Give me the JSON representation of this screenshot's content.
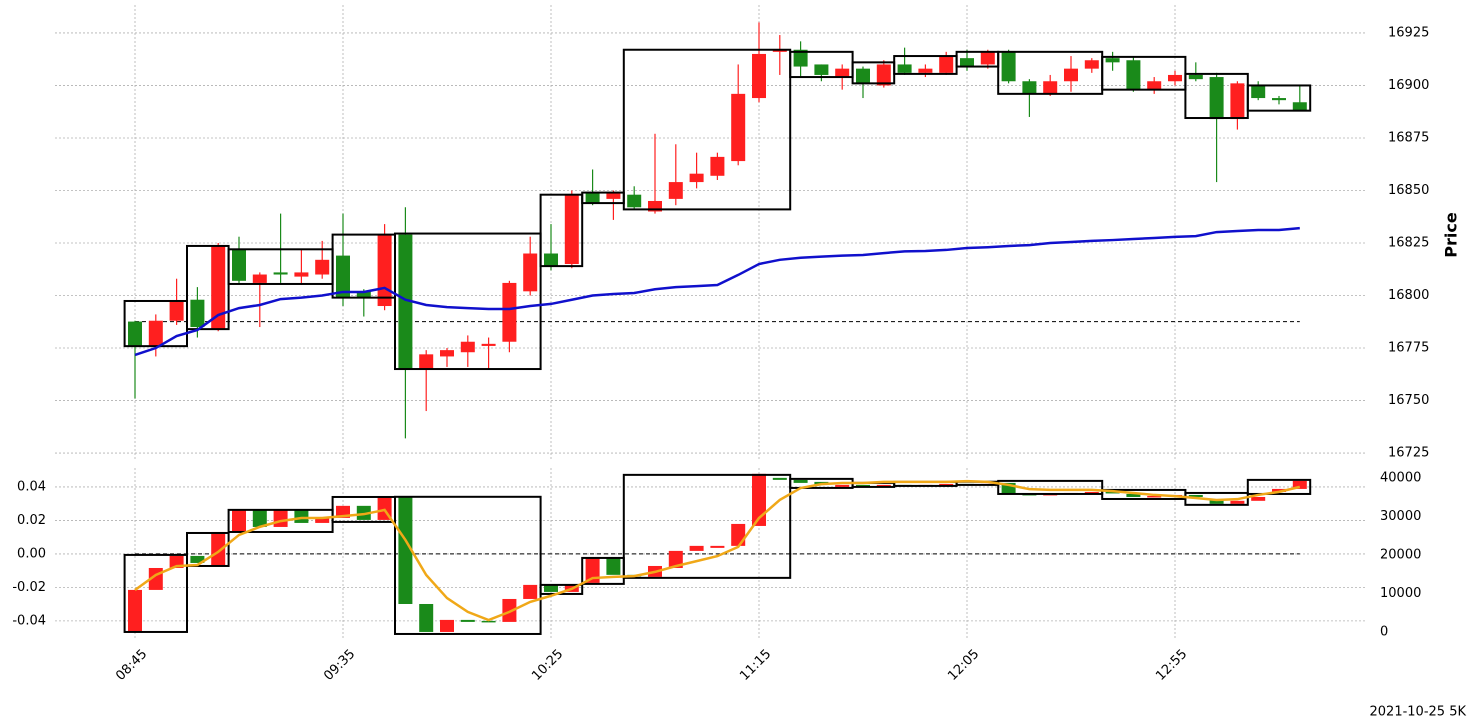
{
  "chart_data": {
    "type": "candlestick",
    "footer": "2021-10-25 5K",
    "categories": [
      "08:45",
      null,
      null,
      null,
      null,
      null,
      null,
      null,
      null,
      null,
      "09:35",
      null,
      null,
      null,
      null,
      null,
      null,
      null,
      null,
      null,
      "10:25",
      null,
      null,
      null,
      null,
      null,
      null,
      null,
      null,
      null,
      "11:15",
      null,
      null,
      null,
      null,
      null,
      null,
      null,
      null,
      null,
      "12:05",
      null,
      null,
      null,
      null,
      null,
      null,
      null,
      null,
      null,
      "12:55",
      null,
      null,
      null,
      null,
      null,
      null
    ],
    "grid": true,
    "up_color": "#ff1f1f",
    "down_color": "#1a8a1a",
    "panels": [
      {
        "ylabel": "Price",
        "ylim": [
          16721.7,
          16938.3
        ],
        "yticks": [
          16725,
          16750,
          16775,
          16800,
          16825,
          16850,
          16875,
          16900,
          16925
        ],
        "open": [
          16787.6,
          16776,
          16788,
          16798,
          16784,
          16822,
          16806,
          16811,
          16809,
          16810,
          16819,
          16802,
          16795,
          16829,
          16765,
          16771,
          16773,
          16776,
          16778,
          16802,
          16820,
          16815,
          16849,
          16846,
          16848,
          16840,
          16846,
          16854,
          16857,
          16864,
          16894,
          16916,
          16917,
          16910,
          16904,
          16908,
          16900,
          16910,
          16906,
          16906,
          16913,
          16910,
          16916,
          16902,
          16896,
          16902,
          16908,
          16913,
          16912,
          16898,
          16902,
          16905,
          16904,
          16884,
          16900,
          16894,
          16892
        ],
        "high": [
          16788,
          16791,
          16808,
          16804,
          16825,
          16828,
          16811,
          16839,
          16822,
          16826,
          16839,
          16803,
          16834,
          16842,
          16774,
          16775,
          16781,
          16780,
          16807,
          16828,
          16834,
          16850,
          16860,
          16850,
          16852,
          16877,
          16872,
          16868,
          16868,
          16910,
          16930,
          16924,
          16921,
          16910,
          16910,
          16909,
          16912,
          16918,
          16910,
          16916,
          16917,
          16917,
          16917,
          16903,
          16905,
          16914,
          16913,
          16916,
          16914,
          16904,
          16907,
          16911,
          16906,
          16902,
          16902,
          16895,
          16900
        ],
        "low": [
          16751,
          16771,
          16786,
          16780,
          16783,
          16806,
          16785,
          16806,
          16805,
          16808,
          16795,
          16790,
          16793,
          16732,
          16745,
          16766,
          16766,
          16765,
          16773,
          16800,
          16812,
          16813,
          16843,
          16836,
          16841,
          16839,
          16843,
          16851,
          16855,
          16862,
          16892,
          16905,
          16904,
          16902,
          16898,
          16894,
          16899,
          16905,
          16904,
          16905,
          16907,
          16908,
          16901,
          16885,
          16895,
          16897,
          16906,
          16907,
          16897,
          16896,
          16900,
          16902,
          16854,
          16879,
          16893,
          16891,
          16888
        ],
        "close": [
          16776,
          16788,
          16797,
          16785,
          16824,
          16807,
          16810,
          16810,
          16811,
          16817,
          16799,
          16799,
          16829,
          16765,
          16772,
          16774,
          16778,
          16777,
          16806,
          16820,
          16814,
          16848,
          16844,
          16849,
          16842,
          16845,
          16854,
          16858,
          16866,
          16896,
          16915,
          16917,
          16909,
          16905,
          16908,
          16901,
          16910,
          16906,
          16908,
          16914,
          16909,
          16916,
          16902,
          16896,
          16902,
          16908,
          16912,
          16911,
          16898,
          16902,
          16905,
          16903,
          16884,
          16901,
          16894,
          16893,
          16888
        ],
        "boxes": {
          "high": [
            16797.4,
            16797.4,
            16797.4,
            16823.6,
            16823.6,
            16822,
            16822,
            16822,
            16822,
            16822,
            16829,
            16829,
            16829,
            16829.5,
            16829.5,
            16829.5,
            16829.5,
            16829.5,
            16829.5,
            16829.5,
            16848,
            16848,
            16849,
            16849,
            16917,
            16917,
            16917,
            16917,
            16917,
            16917,
            16917,
            16917,
            16916,
            16916,
            16916,
            16911,
            16911,
            16914,
            16914,
            16914,
            16916,
            16916,
            16916,
            16916,
            16916,
            16916,
            16916,
            16913.6,
            16913.6,
            16913.6,
            16913.6,
            16905.5,
            16905.5,
            16905.5,
            16900,
            16900,
            16900
          ],
          "low": [
            16775.9,
            16775.9,
            16775.9,
            16784,
            16784,
            16805.5,
            16805.5,
            16805.5,
            16805.5,
            16805.5,
            16799,
            16799,
            16799,
            16765,
            16765,
            16765,
            16765,
            16765,
            16765,
            16765,
            16814,
            16814,
            16844,
            16844,
            16841,
            16841,
            16841,
            16841,
            16841,
            16841,
            16841,
            16841,
            16904,
            16904,
            16904,
            16901,
            16901,
            16905.5,
            16905.5,
            16905.5,
            16909,
            16909,
            16896,
            16896,
            16896,
            16896,
            16896,
            16898,
            16898,
            16898,
            16898,
            16884.5,
            16884.5,
            16884.5,
            16888,
            16888,
            16888
          ]
        },
        "line": {
          "color": "#1010cc",
          "values": [
            16771.7,
            16775,
            16780.7,
            16783.6,
            16790.7,
            16794,
            16795.5,
            16798.3,
            16799,
            16800,
            16801.7,
            16801.7,
            16803.6,
            16798,
            16795.5,
            16794.5,
            16794,
            16793.6,
            16793.6,
            16795,
            16796,
            16798,
            16800,
            16800.7,
            16801.2,
            16803,
            16804,
            16804.5,
            16805,
            16809.8,
            16815,
            16817,
            16818,
            16818.5,
            16819,
            16819.3,
            16820.2,
            16821,
            16821.2,
            16821.7,
            16822.6,
            16823,
            16823.6,
            16824,
            16825,
            16825.5,
            16826,
            16826.4,
            16826.9,
            16827.4,
            16827.9,
            16828.3,
            16830.2,
            16830.7,
            16831.2,
            16831.2,
            16832.1
          ]
        },
        "hline": 16787.6
      },
      {
        "ylim": [
          -0.0514,
          0.0513
        ],
        "yticks": [
          -0.04,
          -0.02,
          {
            "value": 0,
            "label": "0.00"
          },
          0.02,
          0.04
        ],
        "y2lim": [
          -2100,
          42600
        ],
        "y2ticks": [
          0,
          10000,
          20000,
          30000,
          40000
        ],
        "open": [
          -0.0466,
          -0.0215,
          -0.0084,
          -0.0012,
          -0.0072,
          0.0131,
          0.0263,
          0.0161,
          0.0263,
          0.0185,
          0.0215,
          0.0287,
          0.0203,
          0.034,
          -0.0299,
          -0.0466,
          -0.0394,
          -0.04,
          -0.0406,
          -0.0269,
          -0.0185,
          -0.0227,
          -0.0173,
          -0.0024,
          -0.0125,
          -0.0137,
          -0.0084,
          0.0018,
          0.0036,
          0.0048,
          0.0167,
          0.0454,
          0.0442,
          0.043,
          0.04,
          0.0412,
          0.0406,
          0.0412,
          0.0406,
          0.041,
          0.0418,
          0.0412,
          0.0424,
          0.0358,
          0.0352,
          0.0358,
          0.0364,
          0.037,
          0.0358,
          0.034,
          0.0346,
          0.0352,
          0.0328,
          0.0299,
          0.0317,
          0.037,
          0.0388
        ],
        "close": [
          -0.0215,
          -0.0084,
          -0.0012,
          -0.0054,
          0.0131,
          0.0263,
          0.0161,
          0.0263,
          0.0185,
          0.0215,
          0.0287,
          0.0203,
          0.034,
          -0.0299,
          -0.0466,
          -0.0394,
          -0.0406,
          -0.0406,
          -0.0269,
          -0.0185,
          -0.0227,
          -0.0185,
          -0.0024,
          -0.0125,
          -0.0131,
          -0.0072,
          0.0018,
          0.0048,
          0.0048,
          0.0179,
          0.0478,
          0.0442,
          0.0424,
          0.0412,
          0.0412,
          0.0406,
          0.0412,
          0.0406,
          0.0412,
          0.0418,
          0.0412,
          0.0418,
          0.0358,
          0.0352,
          0.0358,
          0.0364,
          0.037,
          0.0364,
          0.034,
          0.0346,
          0.0352,
          0.034,
          0.0299,
          0.0317,
          0.034,
          0.0388,
          0.0436
        ],
        "boxes": {
          "high": [
            -0.0006,
            -0.0006,
            -0.0006,
            0.0125,
            0.0125,
            0.0263,
            0.0263,
            0.0263,
            0.0263,
            0.0263,
            0.034,
            0.034,
            0.034,
            0.0341,
            0.0341,
            0.0341,
            0.0341,
            0.0341,
            0.0341,
            0.0341,
            -0.0185,
            -0.0185,
            -0.0024,
            -0.0024,
            0.0472,
            0.0472,
            0.0472,
            0.0472,
            0.0472,
            0.0472,
            0.0472,
            0.0472,
            0.0448,
            0.0448,
            0.0448,
            0.0424,
            0.0424,
            0.043,
            0.043,
            0.043,
            0.0431,
            0.0431,
            0.0436,
            0.0436,
            0.0436,
            0.0436,
            0.0436,
            0.0382,
            0.0382,
            0.0382,
            0.0382,
            0.0364,
            0.0364,
            0.0364,
            0.0442,
            0.0442,
            0.0442
          ],
          "low": [
            -0.0466,
            -0.0466,
            -0.0466,
            -0.0072,
            -0.0072,
            0.0131,
            0.0131,
            0.0131,
            0.0131,
            0.0131,
            0.0191,
            0.0191,
            0.0191,
            -0.0478,
            -0.0478,
            -0.0478,
            -0.0478,
            -0.0478,
            -0.0478,
            -0.0478,
            -0.0239,
            -0.0239,
            -0.0179,
            -0.0179,
            -0.0143,
            -0.0143,
            -0.0143,
            -0.0143,
            -0.0143,
            -0.0143,
            -0.0143,
            -0.0143,
            0.0394,
            0.0394,
            0.0394,
            0.04,
            0.04,
            0.0406,
            0.0406,
            0.0406,
            0.0412,
            0.0412,
            0.0358,
            0.0358,
            0.0358,
            0.0358,
            0.0358,
            0.0328,
            0.0328,
            0.0328,
            0.0328,
            0.0293,
            0.0293,
            0.0293,
            0.0358,
            0.0358,
            0.0358
          ]
        },
        "line": {
          "color": "#f0a818",
          "axis": "y2",
          "values": [
            10900,
            14800,
            17100,
            17400,
            20800,
            25200,
            27300,
            28800,
            29600,
            29600,
            30100,
            30600,
            31700,
            23900,
            14800,
            8800,
            5200,
            3100,
            5200,
            7800,
            9400,
            11200,
            14000,
            14300,
            14500,
            15600,
            17100,
            18400,
            19700,
            22100,
            29600,
            34300,
            37400,
            38400,
            38700,
            38700,
            39000,
            39000,
            39000,
            39000,
            39200,
            39000,
            38200,
            37100,
            36900,
            36900,
            36900,
            36600,
            36100,
            35600,
            35300,
            34800,
            34300,
            34500,
            35600,
            36400,
            37700
          ]
        },
        "hline": 0
      }
    ]
  }
}
